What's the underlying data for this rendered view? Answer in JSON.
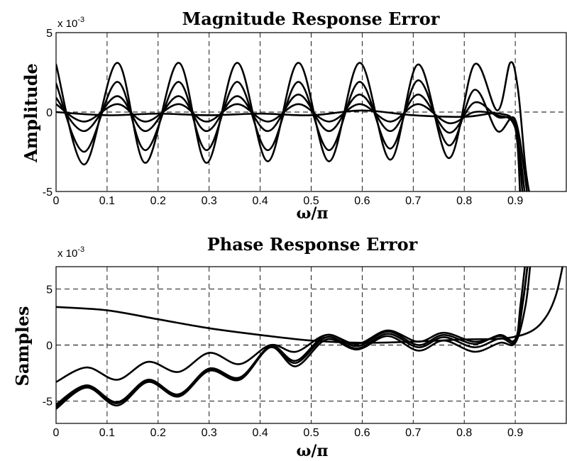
{
  "chart_data": [
    {
      "type": "line",
      "title": "Magnitude Response Error",
      "xlabel": "ω/π",
      "ylabel": "Amplitude",
      "scale_label": "x 10",
      "scale_exponent": "-3",
      "xlim": [
        0,
        1
      ],
      "ylim": [
        -5,
        5
      ],
      "xticks": [
        0,
        0.1,
        0.2,
        0.3,
        0.4,
        0.5,
        0.6,
        0.7,
        0.8,
        0.9
      ],
      "xtick_labels": [
        "0",
        "0.1",
        "0.2",
        "0.3",
        "0.4",
        "0.5",
        "0.6",
        "0.7",
        "0.8",
        "0.9"
      ],
      "yticks": [
        -5,
        0,
        5
      ],
      "ytick_labels": [
        "-5",
        "0",
        "5"
      ],
      "grid": true,
      "series": [
        {
          "x": [
            0,
            0.055,
            0.12,
            0.175,
            0.24,
            0.295,
            0.355,
            0.415,
            0.475,
            0.535,
            0.595,
            0.655,
            0.71,
            0.77,
            0.82,
            0.865,
            0.89,
            0.905,
            0.92,
            0.93
          ],
          "y": [
            3.0,
            -3.3,
            3.1,
            -3.2,
            3.1,
            -3.2,
            3.1,
            -3.1,
            3.1,
            -3.1,
            3.1,
            -3.0,
            3.0,
            -2.9,
            3.0,
            0.1,
            3.1,
            1.5,
            -3.5,
            -5.5
          ]
        },
        {
          "x": [
            0,
            0.055,
            0.12,
            0.175,
            0.24,
            0.295,
            0.355,
            0.415,
            0.475,
            0.535,
            0.595,
            0.655,
            0.71,
            0.77,
            0.82,
            0.865,
            0.9,
            0.925
          ],
          "y": [
            1.8,
            -2.5,
            1.9,
            -2.4,
            1.9,
            -2.4,
            1.9,
            -2.4,
            1.9,
            -2.4,
            1.9,
            -2.3,
            2.0,
            -2.1,
            1.4,
            -1.2,
            -0.5,
            -5.5
          ]
        },
        {
          "x": [
            0,
            0.055,
            0.12,
            0.175,
            0.24,
            0.295,
            0.355,
            0.415,
            0.475,
            0.535,
            0.595,
            0.655,
            0.71,
            0.77,
            0.82,
            0.865,
            0.9,
            0.915
          ],
          "y": [
            0.9,
            -1.2,
            1.0,
            -1.2,
            1.0,
            -1.2,
            1.0,
            -1.2,
            1.1,
            -1.2,
            1.1,
            -1.2,
            1.1,
            -1.3,
            0.6,
            -0.3,
            -0.8,
            -5.5
          ]
        },
        {
          "x": [
            0,
            0.055,
            0.12,
            0.175,
            0.24,
            0.295,
            0.355,
            0.415,
            0.475,
            0.535,
            0.595,
            0.655,
            0.71,
            0.77,
            0.82,
            0.865,
            0.9,
            0.92
          ],
          "y": [
            0.5,
            -0.6,
            0.5,
            -0.6,
            0.5,
            -0.6,
            0.5,
            -0.6,
            0.5,
            -0.6,
            0.5,
            -0.6,
            0.5,
            -0.7,
            0.0,
            -0.2,
            -1.0,
            -5.5
          ]
        },
        {
          "x": [
            0,
            0.1,
            0.2,
            0.3,
            0.4,
            0.5,
            0.6,
            0.7,
            0.8,
            0.87,
            0.9,
            0.91
          ],
          "y": [
            0.0,
            -0.2,
            -0.1,
            -0.2,
            -0.1,
            -0.2,
            0.1,
            -0.2,
            -0.3,
            -0.1,
            -1.0,
            -5.5
          ]
        }
      ]
    },
    {
      "type": "line",
      "title": "Phase Response Error",
      "xlabel": "ω/π",
      "ylabel": "Samples",
      "scale_label": "x 10",
      "scale_exponent": "-3",
      "xlim": [
        0,
        1
      ],
      "ylim": [
        -7,
        7
      ],
      "xticks": [
        0,
        0.1,
        0.2,
        0.3,
        0.4,
        0.5,
        0.6,
        0.7,
        0.8,
        0.9
      ],
      "xtick_labels": [
        "0",
        "0.1",
        "0.2",
        "0.3",
        "0.4",
        "0.5",
        "0.6",
        "0.7",
        "0.8",
        "0.9"
      ],
      "yticks": [
        -5,
        0,
        5
      ],
      "ytick_labels": [
        "-5",
        "0",
        "5"
      ],
      "grid": true,
      "series": [
        {
          "x": [
            0,
            0.1,
            0.2,
            0.3,
            0.4,
            0.5,
            0.6,
            0.7,
            0.8,
            0.88,
            0.93,
            0.96,
            0.98,
            0.995
          ],
          "y": [
            3.4,
            3.1,
            2.3,
            1.5,
            0.9,
            0.4,
            0.2,
            0.3,
            0.5,
            0.6,
            1.2,
            2.5,
            4.5,
            7.5
          ]
        },
        {
          "x": [
            0,
            0.06,
            0.12,
            0.18,
            0.24,
            0.3,
            0.36,
            0.42,
            0.47,
            0.53,
            0.59,
            0.65,
            0.71,
            0.76,
            0.82,
            0.87,
            0.9,
            0.915,
            0.925
          ],
          "y": [
            -3.3,
            -2.0,
            -3.1,
            -1.5,
            -2.4,
            -0.7,
            -1.7,
            0.0,
            -0.6,
            0.9,
            0.1,
            1.3,
            0.3,
            1.1,
            0.3,
            0.8,
            0.5,
            4.0,
            7.5
          ]
        },
        {
          "x": [
            0,
            0.06,
            0.12,
            0.18,
            0.24,
            0.3,
            0.36,
            0.42,
            0.47,
            0.53,
            0.59,
            0.65,
            0.71,
            0.76,
            0.82,
            0.87,
            0.9,
            0.91,
            0.92
          ],
          "y": [
            -5.3,
            -3.6,
            -5.1,
            -3.1,
            -4.4,
            -2.1,
            -2.9,
            -0.1,
            -1.4,
            0.9,
            -0.1,
            1.2,
            0.0,
            0.9,
            0.1,
            0.9,
            0.4,
            3.5,
            7.5
          ]
        },
        {
          "x": [
            0,
            0.06,
            0.12,
            0.18,
            0.24,
            0.3,
            0.36,
            0.42,
            0.47,
            0.53,
            0.59,
            0.65,
            0.71,
            0.76,
            0.82,
            0.87,
            0.9,
            0.915,
            0.925
          ],
          "y": [
            -5.7,
            -3.8,
            -5.4,
            -3.3,
            -4.6,
            -2.3,
            -3.1,
            -0.2,
            -1.6,
            0.7,
            -0.3,
            1.0,
            -0.2,
            0.7,
            -0.2,
            0.6,
            0.3,
            3.8,
            7.5
          ]
        },
        {
          "x": [
            0,
            0.06,
            0.12,
            0.18,
            0.24,
            0.3,
            0.36,
            0.42,
            0.47,
            0.53,
            0.59,
            0.65,
            0.71,
            0.76,
            0.82,
            0.87,
            0.9,
            0.92,
            0.93
          ],
          "y": [
            -5.5,
            -3.7,
            -5.2,
            -3.2,
            -4.5,
            -2.2,
            -3.0,
            -0.2,
            -1.9,
            0.5,
            -0.4,
            0.8,
            -0.5,
            0.4,
            -0.6,
            0.2,
            0.2,
            3.5,
            7.5
          ]
        }
      ]
    }
  ]
}
